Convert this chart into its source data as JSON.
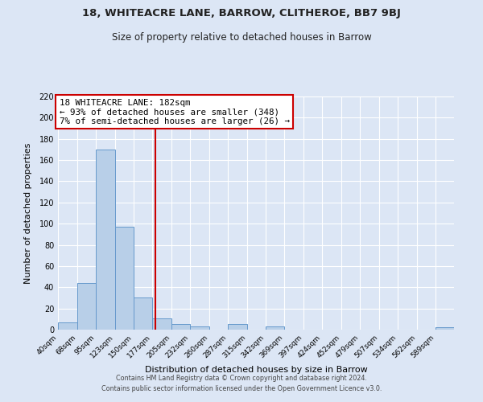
{
  "title": "18, WHITEACRE LANE, BARROW, CLITHEROE, BB7 9BJ",
  "subtitle": "Size of property relative to detached houses in Barrow",
  "xlabel": "Distribution of detached houses by size in Barrow",
  "ylabel": "Number of detached properties",
  "bar_color": "#b8cfe8",
  "bar_edge_color": "#6699cc",
  "background_color": "#dce6f5",
  "grid_color": "#ffffff",
  "bin_labels": [
    "40sqm",
    "68sqm",
    "95sqm",
    "123sqm",
    "150sqm",
    "177sqm",
    "205sqm",
    "232sqm",
    "260sqm",
    "287sqm",
    "315sqm",
    "342sqm",
    "369sqm",
    "397sqm",
    "424sqm",
    "452sqm",
    "479sqm",
    "507sqm",
    "534sqm",
    "562sqm",
    "589sqm"
  ],
  "bar_heights": [
    7,
    44,
    170,
    97,
    30,
    11,
    5,
    3,
    0,
    5,
    0,
    3,
    0,
    0,
    0,
    0,
    0,
    0,
    0,
    0,
    2
  ],
  "vline_x": 182,
  "vline_color": "#cc0000",
  "annotation_title": "18 WHITEACRE LANE: 182sqm",
  "annotation_line1": "← 93% of detached houses are smaller (348)",
  "annotation_line2": "7% of semi-detached houses are larger (26) →",
  "annotation_box_color": "#ffffff",
  "annotation_box_edge": "#cc0000",
  "ylim": [
    0,
    220
  ],
  "yticks": [
    0,
    20,
    40,
    60,
    80,
    100,
    120,
    140,
    160,
    180,
    200,
    220
  ],
  "bin_edges": [
    40,
    68,
    95,
    123,
    150,
    177,
    205,
    232,
    260,
    287,
    315,
    342,
    369,
    397,
    424,
    452,
    479,
    507,
    534,
    562,
    589,
    616
  ],
  "footer_line1": "Contains HM Land Registry data © Crown copyright and database right 2024.",
  "footer_line2": "Contains public sector information licensed under the Open Government Licence v3.0."
}
